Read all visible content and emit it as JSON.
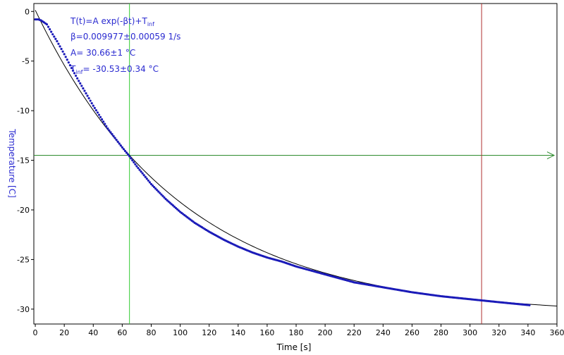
{
  "chart_data": {
    "type": "scatter",
    "title": "",
    "xlabel": "Time [s]",
    "ylabel": "Temperature [C]",
    "xlim": [
      -1,
      360
    ],
    "ylim": [
      -31.5,
      0.8
    ],
    "x_ticks": [
      0,
      20,
      40,
      60,
      80,
      100,
      120,
      140,
      160,
      180,
      200,
      220,
      240,
      260,
      280,
      300,
      320,
      340,
      360
    ],
    "y_ticks": [
      0,
      -5,
      -10,
      -15,
      -20,
      -25,
      -30
    ],
    "grid": false,
    "legend": "none",
    "colors": {
      "data": "#1a1ab8",
      "fit": "#000000",
      "ylabel": "#2a2ad0",
      "annotation": "#2a2ad0",
      "green_vertical": "#33cc33",
      "green_horizontal": "#2e8b2e",
      "red_vertical": "#b03030"
    },
    "fit_model": {
      "equation_prefix": "T(t)=A exp(-βt)+T",
      "equation_sub": "inf",
      "beta": 0.009977,
      "A": 30.66,
      "T_inf": -30.53
    },
    "annotations": {
      "beta_line": "β=0.009977±0.00059 1/s",
      "A_line": "A= 30.66±1 °C",
      "tinf_prefix": "T",
      "tinf_sub": "inf",
      "tinf_rest": "= -30.53±0.34 °C"
    },
    "series": [
      {
        "type": "scatter",
        "x": [
          0,
          2,
          4,
          6,
          8,
          10,
          12,
          15,
          20,
          25,
          30,
          40,
          50,
          60,
          65,
          70,
          80,
          90,
          100,
          110,
          120,
          130,
          140,
          150,
          160,
          170,
          180,
          190,
          200,
          220,
          240,
          260,
          280,
          300,
          320,
          341
        ],
        "y": [
          -0.8,
          -0.8,
          -0.9,
          -1.1,
          -1.3,
          -1.8,
          -2.3,
          -3.0,
          -4.3,
          -5.7,
          -7.0,
          -9.5,
          -11.8,
          -13.7,
          -14.6,
          -15.6,
          -17.4,
          -18.9,
          -20.2,
          -21.3,
          -22.2,
          -23.0,
          -23.7,
          -24.3,
          -24.8,
          -25.2,
          -25.7,
          -26.1,
          -26.5,
          -27.3,
          -27.8,
          -28.3,
          -28.7,
          -29.0,
          -29.3,
          -29.6
        ]
      },
      {
        "type": "line",
        "x_range": [
          0,
          360
        ]
      }
    ],
    "cursors": {
      "green_vertical_x": 65,
      "green_horizontal_y": -14.5,
      "red_vertical_x": 308
    }
  }
}
